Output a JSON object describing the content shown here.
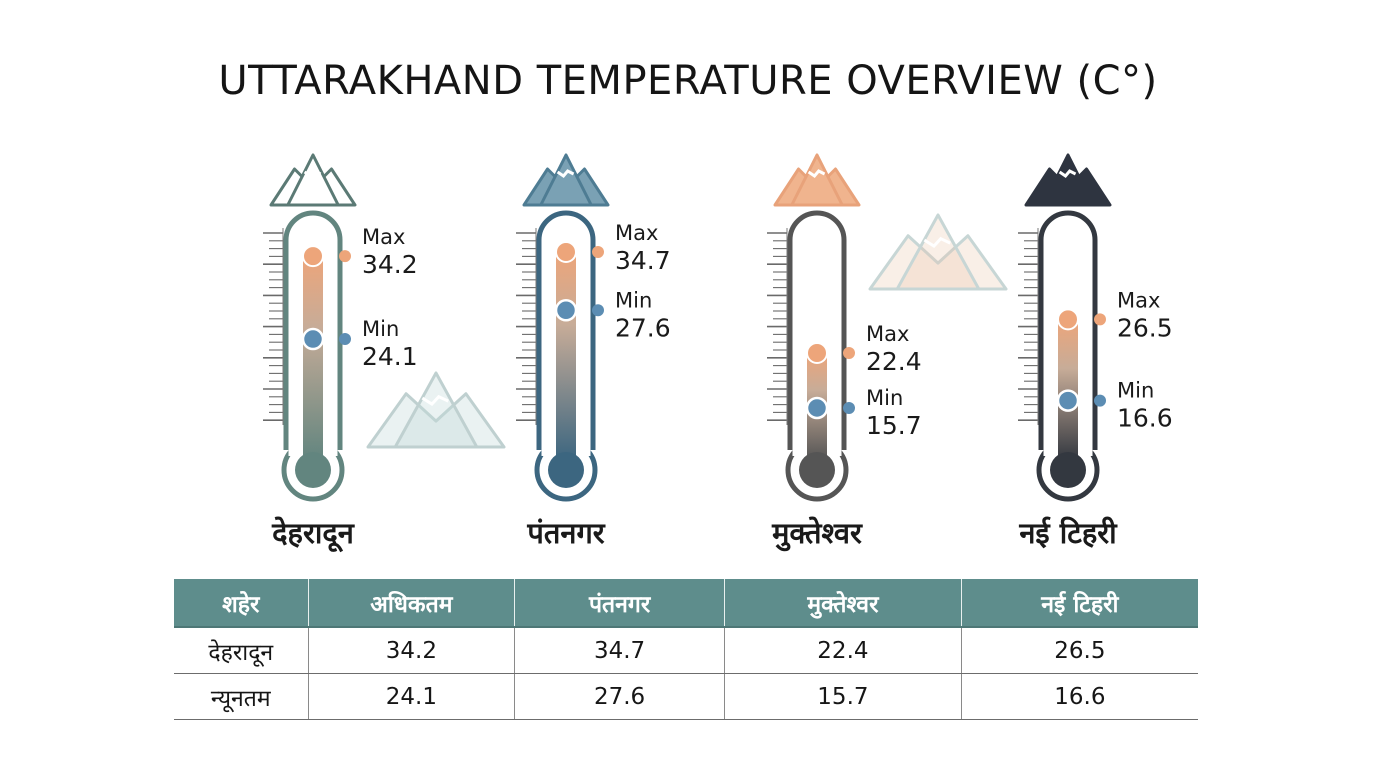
{
  "chart_data": {
    "type": "thermometer",
    "title": "UTTARAKHAND TEMPERATURE OVERVIEW (C°)",
    "unit": "C°",
    "max_label": "Max",
    "min_label": "Min",
    "stations": [
      {
        "name": "देहरादून",
        "max": 34.2,
        "min": 24.1
      },
      {
        "name": "पंतनगर",
        "max": 34.7,
        "min": 27.6
      },
      {
        "name": "मुक्तेश्वर",
        "max": 22.4,
        "min": 15.7
      },
      {
        "name": "नई टिहरी",
        "max": 26.5,
        "min": 16.6
      }
    ],
    "colors": {
      "max_dot": "#eda57a",
      "min_dot": "#5c8db3",
      "thermo_1": "#62857f",
      "thermo_2": "#3c6680",
      "thermo_3": "#555555",
      "thermo_4": "#333840",
      "mountain_1": "#5b7a75",
      "mountain_2": "#4e7c93",
      "mountain_3": "#e8a27a",
      "mountain_4": "#2e3440"
    }
  },
  "table": {
    "headers": [
      "शहेर",
      "अधिकतम",
      "पंतनगर",
      "मुक्तेश्वर",
      "नई टिहरी"
    ],
    "rows": [
      [
        "देहरादून",
        "34.2",
        "34.7",
        "22.4",
        "26.5"
      ],
      [
        "न्यूनतम",
        "24.1",
        "27.6",
        "15.7",
        "16.6"
      ]
    ],
    "header_bg": "#5e8d8c"
  }
}
